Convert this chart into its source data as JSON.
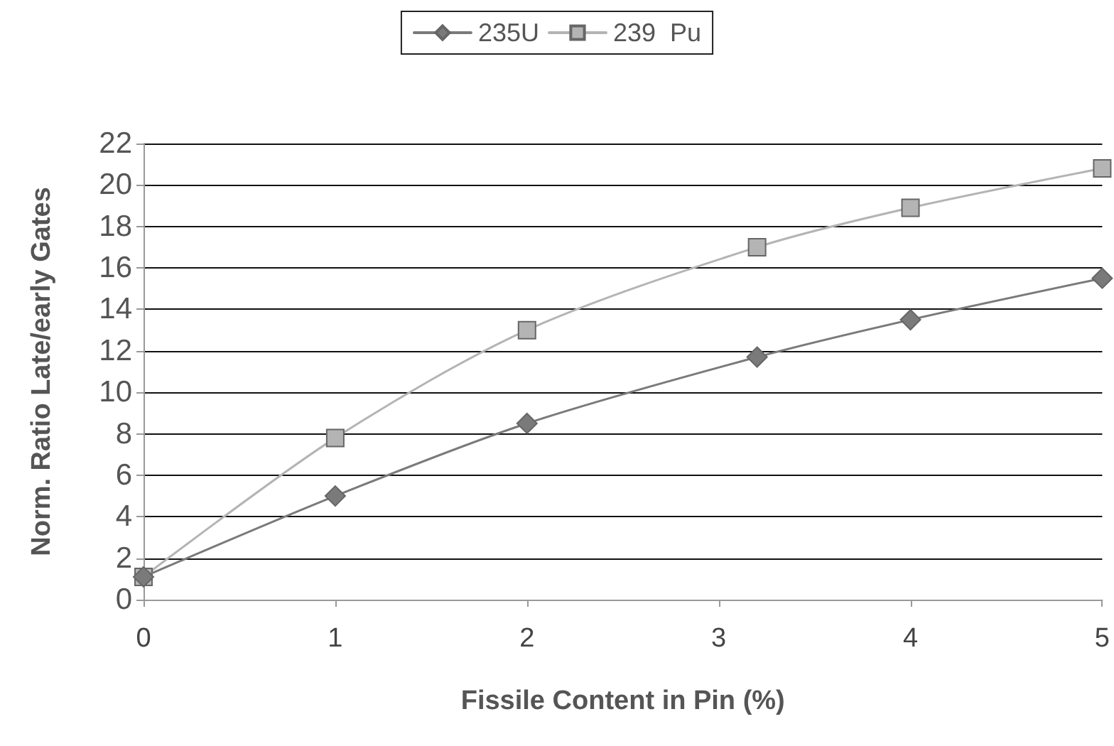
{
  "chart_data": {
    "type": "line",
    "xlabel": "Fissile Content in Pin (%)",
    "ylabel": "Norm. Ratio Late/early Gates",
    "x": [
      0,
      1,
      2,
      3.2,
      4,
      5
    ],
    "series": [
      {
        "name": "235U",
        "color": "#7a7a7a",
        "marker": "diamond",
        "values": [
          1.1,
          5.0,
          8.5,
          11.7,
          13.5,
          15.5
        ]
      },
      {
        "name": "239  Pu",
        "color": "#b4b4b4",
        "marker": "square",
        "values": [
          1.1,
          7.8,
          13.0,
          17.0,
          18.9,
          20.8
        ]
      }
    ],
    "xlim": [
      0,
      5
    ],
    "xticks": [
      0,
      1,
      2,
      3,
      4,
      5
    ],
    "ylim": [
      0,
      22
    ],
    "yticks": [
      0,
      2,
      4,
      6,
      8,
      10,
      12,
      14,
      16,
      18,
      20,
      22
    ],
    "grid": "y",
    "legend": "top",
    "line_style": "solid"
  }
}
